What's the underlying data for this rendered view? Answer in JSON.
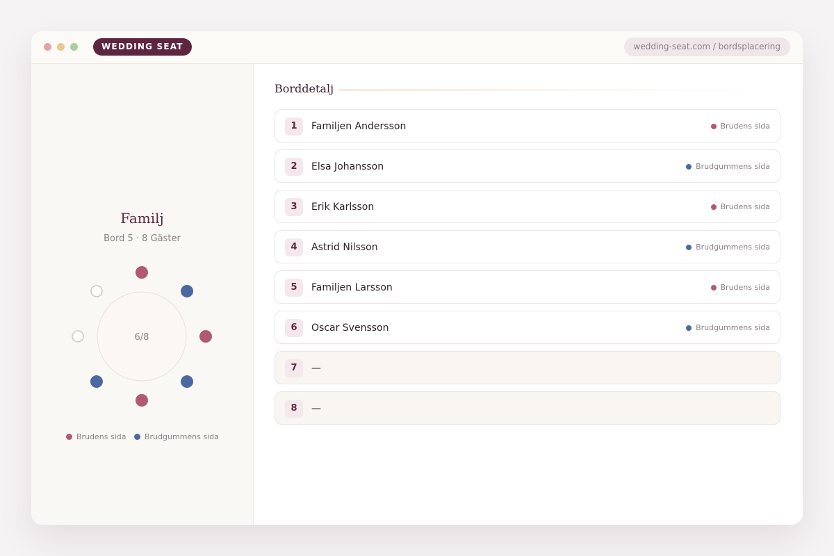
{
  "header": {
    "brand": "WEDDING SEAT",
    "url": "wedding-seat.com / bordsplacering"
  },
  "table": {
    "name": "Familj",
    "subtitle": "Bord 5 · 8 Gäster",
    "occupancy": "6/8"
  },
  "legend": [
    {
      "label": "Brudens sida",
      "color": "#b05a70"
    },
    {
      "label": "Brudgummens sida",
      "color": "#4c68a0"
    }
  ],
  "detail": {
    "heading": "Borddetalj",
    "rows": [
      {
        "number": 1,
        "name": "Familjen Andersson",
        "side": "Brudens sida"
      },
      {
        "number": 2,
        "name": "Elsa Johansson",
        "side": "Brudgummens sida"
      },
      {
        "number": 3,
        "name": "Erik Karlsson",
        "side": "Brudens sida"
      },
      {
        "number": 4,
        "name": "Astrid Nilsson",
        "side": "Brudgummens sida"
      },
      {
        "number": 5,
        "name": "Familjen Larsson",
        "side": "Brudens sida"
      },
      {
        "number": 6,
        "name": "Oscar Svensson",
        "side": "Brudgummens sida"
      },
      {
        "number": 7,
        "name": "—"
      },
      {
        "number": 8,
        "name": "—"
      }
    ]
  }
}
